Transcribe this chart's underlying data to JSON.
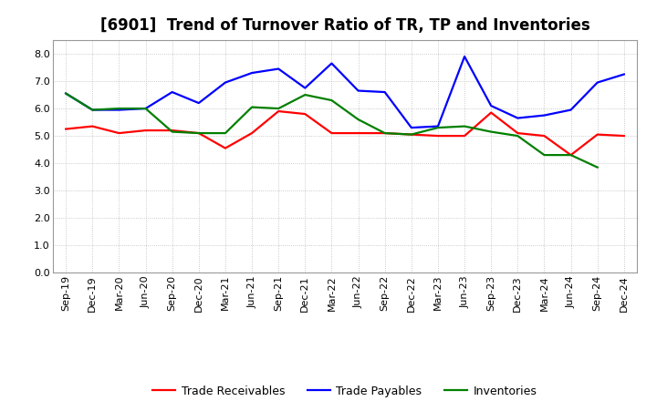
{
  "title": "[6901]  Trend of Turnover Ratio of TR, TP and Inventories",
  "x_labels": [
    "Sep-19",
    "Dec-19",
    "Mar-20",
    "Jun-20",
    "Sep-20",
    "Dec-20",
    "Mar-21",
    "Jun-21",
    "Sep-21",
    "Dec-21",
    "Mar-22",
    "Jun-22",
    "Sep-22",
    "Dec-22",
    "Mar-23",
    "Jun-23",
    "Sep-23",
    "Dec-23",
    "Mar-24",
    "Jun-24",
    "Sep-24",
    "Dec-24"
  ],
  "trade_receivables": [
    5.25,
    5.35,
    5.1,
    5.2,
    5.2,
    5.1,
    4.55,
    5.1,
    5.9,
    5.8,
    5.1,
    5.1,
    5.1,
    5.05,
    5.0,
    5.0,
    5.85,
    5.1,
    5.0,
    4.3,
    5.05,
    5.0
  ],
  "trade_payables": [
    6.55,
    5.95,
    5.95,
    6.0,
    6.6,
    6.2,
    6.95,
    7.3,
    7.45,
    6.75,
    7.65,
    6.65,
    6.6,
    5.3,
    5.35,
    7.9,
    6.1,
    5.65,
    5.75,
    5.95,
    6.95,
    7.25
  ],
  "inventories": [
    6.55,
    5.95,
    6.0,
    6.0,
    5.15,
    5.1,
    5.1,
    6.05,
    6.0,
    6.5,
    6.3,
    5.6,
    5.1,
    5.05,
    5.3,
    5.35,
    5.15,
    5.0,
    4.3,
    4.3,
    3.85,
    null
  ],
  "ylim": [
    0.0,
    8.5
  ],
  "yticks": [
    0.0,
    1.0,
    2.0,
    3.0,
    4.0,
    5.0,
    6.0,
    7.0,
    8.0
  ],
  "line_colors": {
    "trade_receivables": "#FF0000",
    "trade_payables": "#0000FF",
    "inventories": "#008000"
  },
  "legend_labels": [
    "Trade Receivables",
    "Trade Payables",
    "Inventories"
  ],
  "background_color": "#FFFFFF",
  "grid_color": "#BBBBBB",
  "title_fontsize": 12,
  "label_fontsize": 9,
  "tick_fontsize": 8
}
